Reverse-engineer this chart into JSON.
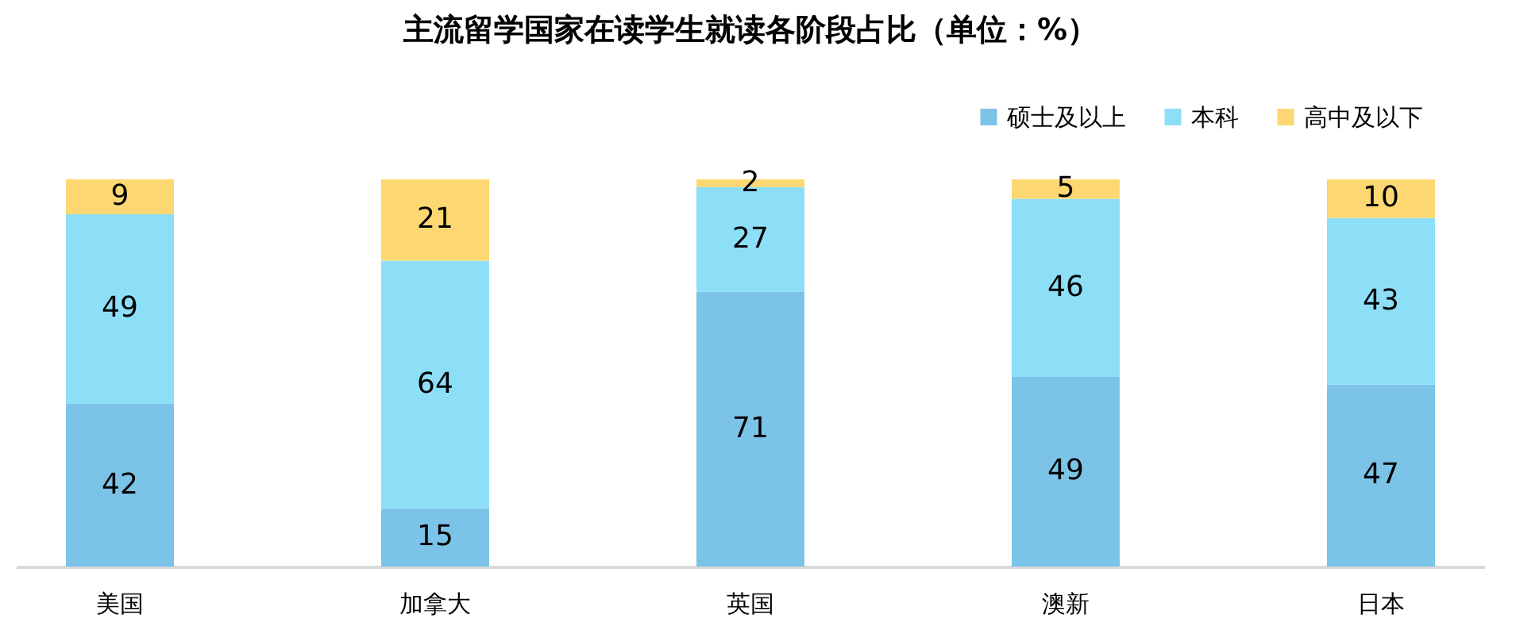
{
  "chart_data": {
    "type": "bar",
    "title": "主流留学国家在读学生就读各阶段占比（单位：%）",
    "categories": [
      "美国",
      "加拿大",
      "英国",
      "澳新",
      "日本"
    ],
    "stacked": true,
    "data_labels": true,
    "legend": "top right",
    "grid": false,
    "series": [
      {
        "name": "硕士及以上",
        "color": "#7cc3e8",
        "values": [
          42,
          15,
          71,
          49,
          47
        ]
      },
      {
        "name": "本科",
        "color": "#8ddff8",
        "values": [
          49,
          64,
          27,
          46,
          43
        ]
      },
      {
        "name": "高中及以下",
        "color": "#fcd772",
        "values": [
          9,
          21,
          2,
          5,
          10
        ]
      }
    ]
  }
}
